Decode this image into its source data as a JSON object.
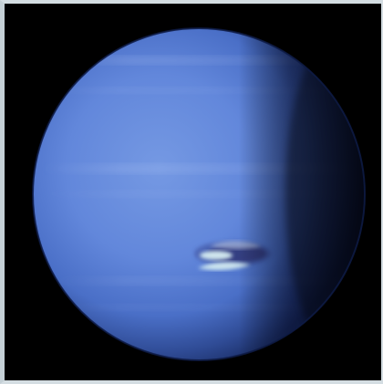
{
  "image": {
    "subject_icon": "planet-icon",
    "colors": {
      "space": "#000000",
      "planet_light": "#6f93e0",
      "planet_mid": "#4f74d0",
      "planet_dark": "#10204a",
      "cloud_band": "#b8cdf3",
      "storm_dark": "#3a3f86",
      "storm_highlight": "#cfe7ee",
      "frame": "#d4dde2"
    }
  }
}
